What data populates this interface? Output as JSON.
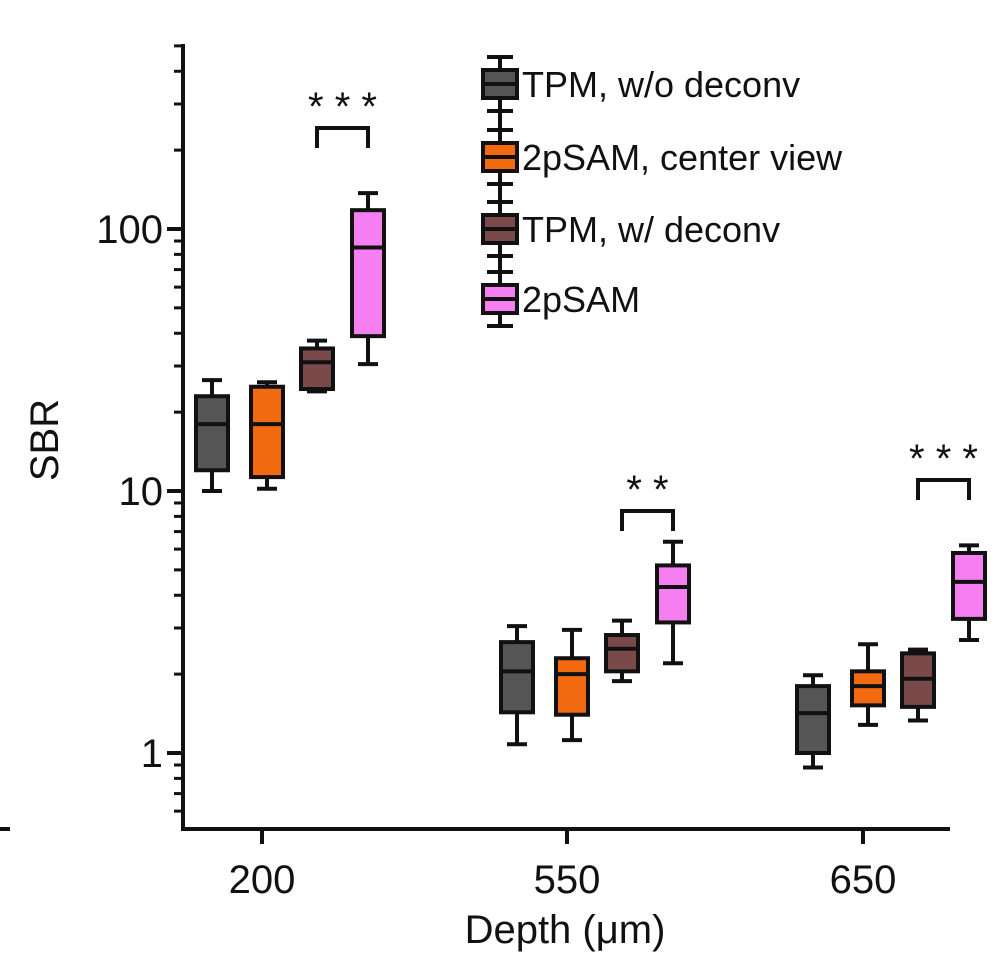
{
  "chart_data": {
    "type": "box",
    "ylabel": "SBR",
    "xlabel": "Depth (μm)",
    "yscale": "log",
    "ylim": [
      0.5,
      550
    ],
    "categories": [
      "200",
      "550",
      "650"
    ],
    "y_tick_labels": [
      "1",
      "10",
      "100"
    ],
    "series": [
      {
        "name": "TPM, w/o deconv",
        "color": "#555555",
        "boxes": [
          {
            "category": "200",
            "min": 10,
            "q1": 12,
            "median": 18,
            "q3": 23,
            "max": 26.5
          },
          {
            "category": "550",
            "min": 1.08,
            "q1": 1.43,
            "median": 2.05,
            "q3": 2.65,
            "max": 3.05
          },
          {
            "category": "650",
            "min": 0.88,
            "q1": 1.0,
            "median": 1.42,
            "q3": 1.8,
            "max": 1.98
          }
        ]
      },
      {
        "name": "2pSAM, center view",
        "color": "#f26a10",
        "boxes": [
          {
            "category": "200",
            "min": 10.2,
            "q1": 11.3,
            "median": 18,
            "q3": 25,
            "max": 26
          },
          {
            "category": "550",
            "min": 1.12,
            "q1": 1.4,
            "median": 2.0,
            "q3": 2.3,
            "max": 2.95
          },
          {
            "category": "650",
            "min": 1.28,
            "q1": 1.52,
            "median": 1.8,
            "q3": 2.05,
            "max": 2.6
          }
        ]
      },
      {
        "name": "TPM, w/ deconv",
        "color": "#7a4a4a",
        "boxes": [
          {
            "category": "200",
            "min": 24,
            "q1": 24.5,
            "median": 31,
            "q3": 35,
            "max": 37.5
          },
          {
            "category": "550",
            "min": 1.88,
            "q1": 2.05,
            "median": 2.5,
            "q3": 2.82,
            "max": 3.2
          },
          {
            "category": "650",
            "min": 1.33,
            "q1": 1.5,
            "median": 1.92,
            "q3": 2.4,
            "max": 2.48
          }
        ]
      },
      {
        "name": "2pSAM",
        "color": "#f57ef0",
        "boxes": [
          {
            "category": "200",
            "min": 30.5,
            "q1": 39,
            "median": 85,
            "q3": 118,
            "max": 137
          },
          {
            "category": "550",
            "min": 2.2,
            "q1": 3.15,
            "median": 4.3,
            "q3": 5.2,
            "max": 6.4
          },
          {
            "category": "650",
            "min": 2.7,
            "q1": 3.25,
            "median": 4.5,
            "q3": 5.8,
            "max": 6.2
          }
        ]
      }
    ],
    "annotations": [
      {
        "category": "200",
        "text": "* * *",
        "between": [
          "TPM, w/ deconv",
          "2pSAM"
        ]
      },
      {
        "category": "550",
        "text": "* *",
        "between": [
          "TPM, w/ deconv",
          "2pSAM"
        ]
      },
      {
        "category": "650",
        "text": "* * *",
        "between": [
          "TPM, w/ deconv",
          "2pSAM"
        ]
      }
    ],
    "legend_position": "top-right"
  }
}
